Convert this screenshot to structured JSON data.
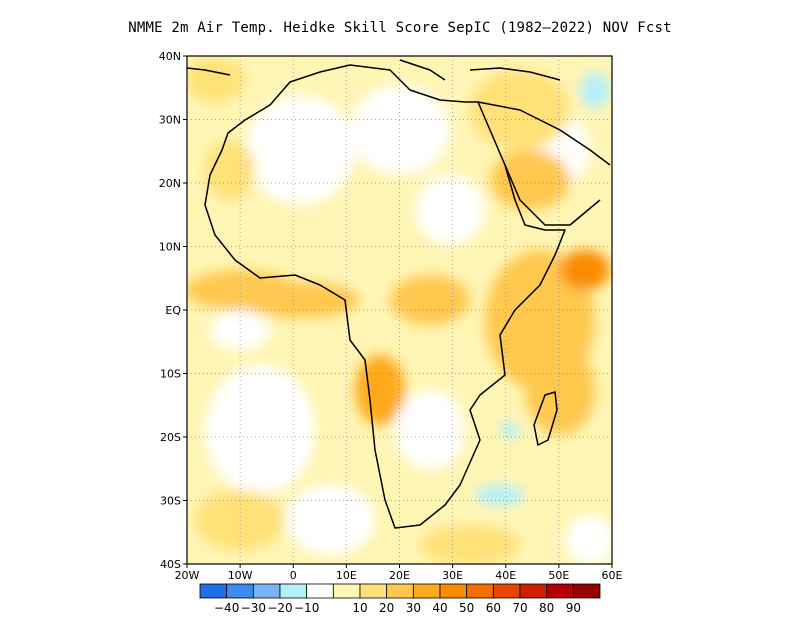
{
  "title": "NMME  2m Air Temp. Heidke Skill Score SepIC (1982–2022) NOV Fcst",
  "map": {
    "lon_range": [
      -20,
      60
    ],
    "lat_range": [
      -40,
      40
    ],
    "grid": "dotted",
    "lon_ticks": [
      {
        "lon": -20,
        "label": "20W"
      },
      {
        "lon": -10,
        "label": "10W"
      },
      {
        "lon": 0,
        "label": "0"
      },
      {
        "lon": 10,
        "label": "10E"
      },
      {
        "lon": 20,
        "label": "20E"
      },
      {
        "lon": 30,
        "label": "30E"
      },
      {
        "lon": 40,
        "label": "40E"
      },
      {
        "lon": 50,
        "label": "50E"
      },
      {
        "lon": 60,
        "label": "60E"
      }
    ],
    "lat_ticks": [
      {
        "lat": 40,
        "label": "40N"
      },
      {
        "lat": 30,
        "label": "30N"
      },
      {
        "lat": 20,
        "label": "20N"
      },
      {
        "lat": 10,
        "label": "10N"
      },
      {
        "lat": 0,
        "label": "EQ"
      },
      {
        "lat": -10,
        "label": "10S"
      },
      {
        "lat": -20,
        "label": "20S"
      },
      {
        "lat": -30,
        "label": "30S"
      },
      {
        "lat": -40,
        "label": "40S"
      }
    ]
  },
  "colorbar": {
    "colors": [
      "#1e6ee6",
      "#3c8cf0",
      "#78b4f5",
      "#b4f0fa",
      "#ffffff",
      "#fff5b4",
      "#ffe178",
      "#ffc850",
      "#ffaa1e",
      "#fa8c00",
      "#f56e00",
      "#e64600",
      "#d21e00",
      "#b40000",
      "#960000"
    ],
    "labels": [
      "−40",
      "−30",
      "−20",
      "−10",
      "10",
      "20",
      "30",
      "40",
      "50",
      "60",
      "70",
      "80",
      "90"
    ]
  }
}
